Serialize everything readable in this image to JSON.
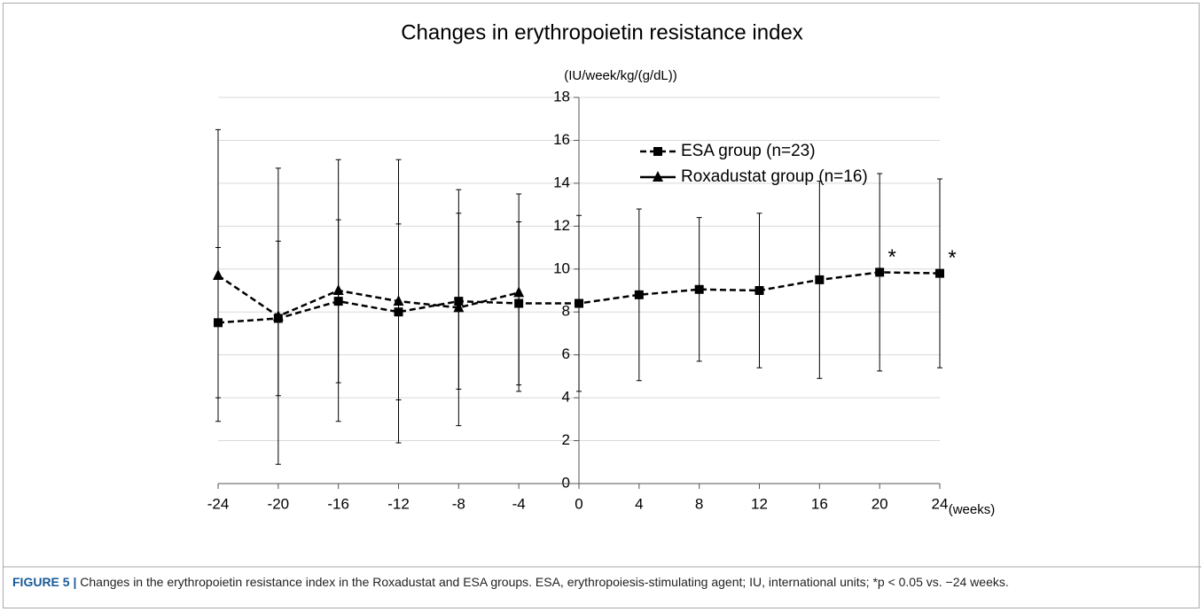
{
  "chart_data": {
    "type": "line",
    "title": "Changes in erythropoietin resistance index",
    "y_axis_label": "(IU/week/kg/(g/dL))",
    "x_axis_label": "(weeks)",
    "x": [
      -24,
      -20,
      -16,
      -12,
      -8,
      -4,
      0,
      4,
      8,
      12,
      16,
      20,
      24
    ],
    "series": [
      {
        "name": "ESA group (n=23)",
        "color": "#000000",
        "marker": "square",
        "legend_line": "dashed",
        "values": [
          7.5,
          7.7,
          8.5,
          8.0,
          8.5,
          8.4,
          8.4,
          8.8,
          9.05,
          9.0,
          9.5,
          9.85,
          9.8
        ],
        "errors": [
          3.5,
          3.6,
          3.8,
          4.1,
          4.1,
          3.8,
          4.1,
          4.0,
          3.35,
          3.6,
          4.6,
          4.6,
          4.4
        ]
      },
      {
        "name": "Roxadustat group (n=16)",
        "color": "#000000",
        "marker": "triangle",
        "legend_line": "solid",
        "values": [
          9.7,
          7.8,
          9.0,
          8.5,
          8.2,
          8.9,
          null,
          null,
          null,
          null,
          null,
          null,
          null
        ],
        "errors": [
          6.8,
          6.9,
          6.1,
          6.6,
          5.5,
          4.6,
          null,
          null,
          null,
          null,
          null,
          null,
          null
        ]
      }
    ],
    "annotations": [
      {
        "text": "*",
        "x": 20
      },
      {
        "text": "*",
        "x": 24
      }
    ],
    "xlim": [
      -24,
      24
    ],
    "xticks": [
      -24,
      -20,
      -16,
      -12,
      -8,
      -4,
      0,
      4,
      8,
      12,
      16,
      20,
      24
    ],
    "ylim": [
      0,
      18
    ],
    "yticks": [
      0,
      2,
      4,
      6,
      8,
      10,
      12,
      14,
      16,
      18
    ],
    "grid": true,
    "legend": "upper right"
  },
  "caption": {
    "label": "FIGURE 5 |",
    "text": "Changes in the erythropoietin resistance index in the Roxadustat and ESA groups. ESA, erythropoiesis-stimulating agent; IU, international units; *p < 0.05 vs. −24 weeks."
  }
}
